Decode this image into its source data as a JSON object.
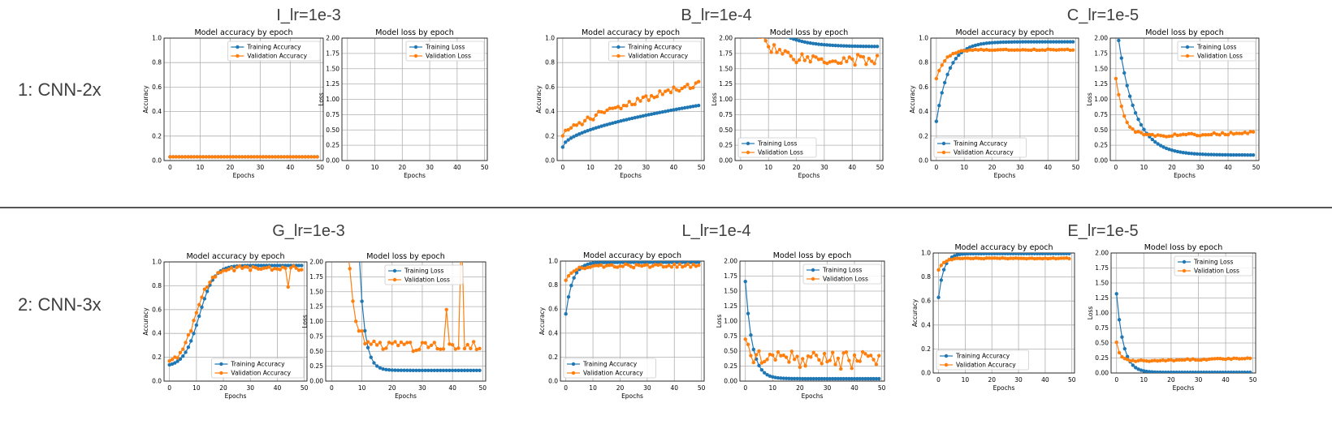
{
  "rows": [
    {
      "label": "1: CNN-2x"
    },
    {
      "label": "2: CNN-3x"
    }
  ],
  "panels": [
    {
      "title": "I_lr=1e-3"
    },
    {
      "title": "B_lr=1e-4"
    },
    {
      "title": "C_lr=1e-5"
    },
    {
      "title": "G_lr=1e-3"
    },
    {
      "title": "L_lr=1e-4"
    },
    {
      "title": "E_lr=1e-5"
    }
  ],
  "colors": {
    "training": "#1f77b4",
    "validation": "#ff7f0e"
  },
  "chart_data": [
    {
      "type": "line",
      "panel": "I_lr=1e-3",
      "title": "Model accuracy by epoch",
      "xlabel": "Epochs",
      "ylabel": "Accuracy",
      "xlim": [
        -2,
        51
      ],
      "ylim": [
        0,
        1
      ],
      "xticks": [
        0,
        10,
        20,
        30,
        40,
        50
      ],
      "yticks": [
        0,
        0.2,
        0.4,
        0.6,
        0.8,
        1.0
      ],
      "ytick_labels": [
        "0.0",
        "0.2",
        "0.4",
        "0.6",
        "0.8",
        "1.0"
      ],
      "grid": true,
      "legend": "top-right",
      "series": [
        {
          "name": "Training Accuracy",
          "key": "training",
          "gen": {
            "kind": "const",
            "v": 0.03
          }
        },
        {
          "name": "Validation Accuracy",
          "key": "validation",
          "gen": {
            "kind": "const",
            "v": 0.03
          }
        }
      ]
    },
    {
      "type": "line",
      "panel": "I_lr=1e-3",
      "title": "Model loss by epoch",
      "xlabel": "Epochs",
      "ylabel": "Loss",
      "xlim": [
        -2,
        51
      ],
      "ylim": [
        0,
        2
      ],
      "xticks": [
        0,
        10,
        20,
        30,
        40,
        50
      ],
      "yticks": [
        0,
        0.25,
        0.5,
        0.75,
        1,
        1.25,
        1.5,
        1.75,
        2
      ],
      "ytick_labels": [
        "0.00",
        "0.25",
        "0.50",
        "0.75",
        "1.00",
        "1.25",
        "1.50",
        "1.75",
        "2.00"
      ],
      "grid": true,
      "legend": "top-right",
      "series": [
        {
          "name": "Training Loss",
          "key": "training",
          "gen": {
            "kind": "none"
          }
        },
        {
          "name": "Validation Loss",
          "key": "validation",
          "gen": {
            "kind": "none"
          }
        }
      ]
    },
    {
      "type": "line",
      "panel": "B_lr=1e-4",
      "title": "Model accuracy by epoch",
      "xlabel": "Epochs",
      "ylabel": "Accuracy",
      "xlim": [
        -2,
        51
      ],
      "ylim": [
        0,
        1
      ],
      "xticks": [
        0,
        10,
        20,
        30,
        40,
        50
      ],
      "yticks": [
        0,
        0.2,
        0.4,
        0.6,
        0.8,
        1.0
      ],
      "ytick_labels": [
        "0.0",
        "0.2",
        "0.4",
        "0.6",
        "0.8",
        "1.0"
      ],
      "grid": true,
      "legend": "top-left",
      "series": [
        {
          "name": "Training Accuracy",
          "key": "training",
          "gen": {
            "kind": "grow",
            "a": 0.11,
            "b": 0.45,
            "k": 0.55,
            "noise": 0
          }
        },
        {
          "name": "Validation Accuracy",
          "key": "validation",
          "gen": {
            "kind": "grow",
            "a": 0.19,
            "b": 0.63,
            "k": 0.65,
            "noise": 0.025
          }
        }
      ]
    },
    {
      "type": "line",
      "panel": "B_lr=1e-4",
      "title": "Model loss by epoch",
      "xlabel": "Epochs",
      "ylabel": "Loss",
      "xlim": [
        -2,
        51
      ],
      "ylim": [
        0,
        2
      ],
      "xticks": [
        0,
        10,
        20,
        30,
        40,
        50
      ],
      "yticks": [
        0,
        0.25,
        0.5,
        0.75,
        1,
        1.25,
        1.5,
        1.75,
        2
      ],
      "ytick_labels": [
        "0.00",
        "0.25",
        "0.50",
        "0.75",
        "1.00",
        "1.25",
        "1.50",
        "1.75",
        "2.00"
      ],
      "grid": true,
      "legend": "bottom-left",
      "series": [
        {
          "name": "Training Loss",
          "key": "training",
          "gen": {
            "kind": "decay",
            "a": 3.2,
            "b": 1.86,
            "k": 8,
            "noise": 0
          }
        },
        {
          "name": "Validation Loss",
          "key": "validation",
          "gen": {
            "kind": "decay",
            "a": 3.0,
            "b": 1.65,
            "k": 6,
            "noise": 0.1
          }
        }
      ]
    },
    {
      "type": "line",
      "panel": "C_lr=1e-5",
      "title": "Model accuracy by epoch",
      "xlabel": "Epochs",
      "ylabel": "Accuracy",
      "xlim": [
        -2,
        51
      ],
      "ylim": [
        0,
        1
      ],
      "xticks": [
        0,
        10,
        20,
        30,
        40,
        50
      ],
      "yticks": [
        0,
        0.2,
        0.4,
        0.6,
        0.8,
        1.0
      ],
      "ytick_labels": [
        "0.0",
        "0.2",
        "0.4",
        "0.6",
        "0.8",
        "1.0"
      ],
      "grid": true,
      "legend": "bottom-left",
      "series": [
        {
          "name": "Training Accuracy",
          "key": "training",
          "gen": {
            "kind": "sat",
            "a": 0.32,
            "b": 0.97,
            "k": 4.5,
            "noise": 0
          }
        },
        {
          "name": "Validation Accuracy",
          "key": "validation",
          "gen": {
            "kind": "sat",
            "a": 0.67,
            "b": 0.905,
            "k": 3,
            "noise": 0.005
          }
        }
      ]
    },
    {
      "type": "line",
      "panel": "C_lr=1e-5",
      "title": "Model loss by epoch",
      "xlabel": "Epochs",
      "ylabel": "Loss",
      "xlim": [
        -2,
        51
      ],
      "ylim": [
        0,
        2
      ],
      "xticks": [
        0,
        10,
        20,
        30,
        40,
        50
      ],
      "yticks": [
        0,
        0.25,
        0.5,
        0.75,
        1,
        1.25,
        1.5,
        1.75,
        2
      ],
      "ytick_labels": [
        "0.00",
        "0.25",
        "0.50",
        "0.75",
        "1.00",
        "1.25",
        "1.50",
        "1.75",
        "2.00"
      ],
      "grid": true,
      "legend": "top-right",
      "series": [
        {
          "name": "Training Loss",
          "key": "training",
          "gen": {
            "kind": "decay",
            "a": 2.3,
            "b": 0.09,
            "k": 6,
            "noise": 0
          }
        },
        {
          "name": "Validation Loss",
          "key": "validation",
          "gen": {
            "kind": "uvalley",
            "a": 1.33,
            "b": 0.38,
            "k": 3,
            "rise": 0.0015,
            "noise": 0.02
          }
        }
      ]
    },
    {
      "type": "line",
      "panel": "G_lr=1e-3",
      "title": "Model accuracy by epoch",
      "xlabel": "Epochs",
      "ylabel": "Accuracy",
      "xlim": [
        -2,
        51
      ],
      "ylim": [
        0,
        1
      ],
      "xticks": [
        0,
        10,
        20,
        30,
        40,
        50
      ],
      "yticks": [
        0,
        0.2,
        0.4,
        0.6,
        0.8,
        1.0
      ],
      "ytick_labels": [
        "0.0",
        "0.2",
        "0.4",
        "0.6",
        "0.8",
        "1.0"
      ],
      "grid": true,
      "legend": "bottom-right",
      "series": [
        {
          "name": "Training Accuracy",
          "key": "training",
          "gen": {
            "kind": "sigmoid",
            "a": 0.12,
            "b": 0.97,
            "c": 11,
            "s": 2.8,
            "noise": 0
          }
        },
        {
          "name": "Validation Accuracy",
          "key": "validation",
          "gen": {
            "kind": "sigmoid",
            "a": 0.12,
            "b": 0.95,
            "c": 9.5,
            "s": 3,
            "noise": 0.02,
            "spikes": {
              "44": 0.79
            }
          }
        }
      ]
    },
    {
      "type": "line",
      "panel": "G_lr=1e-3",
      "title": "Model loss by epoch",
      "xlabel": "Epochs",
      "ylabel": "Loss",
      "xlim": [
        -2,
        51
      ],
      "ylim": [
        0,
        2
      ],
      "xticks": [
        0,
        10,
        20,
        30,
        40,
        50
      ],
      "yticks": [
        0,
        0.25,
        0.5,
        0.75,
        1,
        1.25,
        1.5,
        1.75,
        2
      ],
      "ytick_labels": [
        "0.00",
        "0.25",
        "0.50",
        "0.75",
        "1.00",
        "1.25",
        "1.50",
        "1.75",
        "2.00"
      ],
      "grid": true,
      "legend": "top-center",
      "series": [
        {
          "name": "Training Loss",
          "key": "training",
          "gen": {
            "kind": "drop",
            "start": 9,
            "a": 2.2,
            "b": 0.18,
            "k": 1.8,
            "noise": 0
          }
        },
        {
          "name": "Validation Loss",
          "key": "validation",
          "gen": {
            "kind": "drop",
            "start": 6,
            "a": 1.8,
            "b": 0.5,
            "k": 2,
            "noise": 0.18,
            "spikes": {
              "38": 1.2,
              "43": 2.6
            }
          }
        }
      ]
    },
    {
      "type": "line",
      "panel": "L_lr=1e-4",
      "title": "Model accuracy by epoch",
      "xlabel": "Epochs",
      "ylabel": "Accuracy",
      "xlim": [
        -2,
        51
      ],
      "ylim": [
        0,
        1
      ],
      "xticks": [
        0,
        10,
        20,
        30,
        40,
        50
      ],
      "yticks": [
        0,
        0.2,
        0.4,
        0.6,
        0.8,
        1.0
      ],
      "ytick_labels": [
        "0.0",
        "0.2",
        "0.4",
        "0.6",
        "0.8",
        "1.0"
      ],
      "grid": true,
      "legend": "bottom-left",
      "series": [
        {
          "name": "Training Accuracy",
          "key": "training",
          "gen": {
            "kind": "sat",
            "a": 0.56,
            "b": 0.99,
            "k": 2.5,
            "noise": 0
          }
        },
        {
          "name": "Validation Accuracy",
          "key": "validation",
          "gen": {
            "kind": "sat",
            "a": 0.83,
            "b": 0.96,
            "k": 2.5,
            "noise": 0.015
          }
        }
      ]
    },
    {
      "type": "line",
      "panel": "L_lr=1e-4",
      "title": "Model loss by epoch",
      "xlabel": "Epochs",
      "ylabel": "Loss",
      "xlim": [
        -2,
        51
      ],
      "ylim": [
        0,
        2
      ],
      "xticks": [
        0,
        10,
        20,
        30,
        40,
        50
      ],
      "yticks": [
        0,
        0.25,
        0.5,
        0.75,
        1,
        1.25,
        1.5,
        1.75,
        2
      ],
      "ytick_labels": [
        "0.00",
        "0.25",
        "0.50",
        "0.75",
        "1.00",
        "1.25",
        "1.50",
        "1.75",
        "2.00"
      ],
      "grid": true,
      "legend": "top-right",
      "series": [
        {
          "name": "Training Loss",
          "key": "training",
          "gen": {
            "kind": "decay",
            "a": 1.66,
            "b": 0.04,
            "k": 2.5,
            "noise": 0
          }
        },
        {
          "name": "Validation Loss",
          "key": "validation",
          "gen": {
            "kind": "decay",
            "a": 0.58,
            "b": 0.35,
            "k": 3,
            "noise": 0.15
          }
        }
      ]
    },
    {
      "type": "line",
      "panel": "E_lr=1e-5",
      "title": "Model accuracy by epoch",
      "xlabel": "Epochs",
      "ylabel": "Accuracy",
      "xlim": [
        -2,
        51
      ],
      "ylim": [
        0,
        1
      ],
      "xticks": [
        0,
        10,
        20,
        30,
        40,
        50
      ],
      "yticks": [
        0,
        0.2,
        0.4,
        0.6,
        0.8,
        1.0
      ],
      "ytick_labels": [
        "0.0",
        "0.2",
        "0.4",
        "0.6",
        "0.8",
        "1.0"
      ],
      "grid": true,
      "legend": "bottom-left",
      "series": [
        {
          "name": "Training Accuracy",
          "key": "training",
          "gen": {
            "kind": "sat",
            "a": 0.63,
            "b": 0.995,
            "k": 2,
            "noise": 0
          }
        },
        {
          "name": "Validation Accuracy",
          "key": "validation",
          "gen": {
            "kind": "sat",
            "a": 0.86,
            "b": 0.955,
            "k": 2,
            "noise": 0.004
          }
        }
      ]
    },
    {
      "type": "line",
      "panel": "E_lr=1e-5",
      "title": "Model loss by epoch",
      "xlabel": "Epochs",
      "ylabel": "Loss",
      "xlim": [
        -2,
        51
      ],
      "ylim": [
        0,
        2
      ],
      "xticks": [
        0,
        10,
        20,
        30,
        40,
        50
      ],
      "yticks": [
        0,
        0.25,
        0.5,
        0.75,
        1,
        1.25,
        1.5,
        1.75,
        2
      ],
      "ytick_labels": [
        "0.00",
        "0.25",
        "0.50",
        "0.75",
        "1.00",
        "1.25",
        "1.50",
        "1.75",
        "2.00"
      ],
      "grid": true,
      "legend": "top-right",
      "series": [
        {
          "name": "Training Loss",
          "key": "training",
          "gen": {
            "kind": "decay",
            "a": 1.32,
            "b": 0.01,
            "k": 2.5,
            "noise": 0
          }
        },
        {
          "name": "Validation Loss",
          "key": "validation",
          "gen": {
            "kind": "uvalley",
            "a": 0.5,
            "b": 0.19,
            "k": 1.5,
            "rise": 0.0012,
            "noise": 0.012
          }
        }
      ]
    }
  ]
}
